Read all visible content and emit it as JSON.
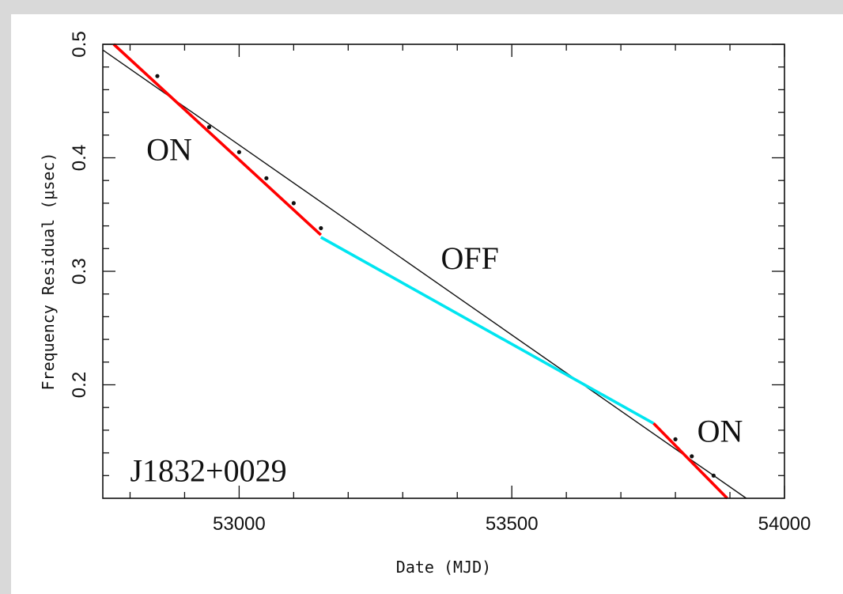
{
  "chart_data": {
    "type": "line",
    "title": "",
    "xlabel": "Date (MJD)",
    "ylabel": "Frequency Residual (μsec)",
    "xlim": [
      52750,
      54000
    ],
    "ylim": [
      0.1,
      0.5
    ],
    "x_ticks": [
      53000,
      53500,
      54000
    ],
    "y_ticks": [
      0.2,
      0.3,
      0.4,
      0.5
    ],
    "grid": false,
    "series": [
      {
        "color": "#111111",
        "style": "thin-line",
        "points": [
          [
            52750,
            0.495
          ],
          [
            53930,
            0.1
          ]
        ]
      },
      {
        "color": "#ff0000",
        "style": "thick-line",
        "points": [
          [
            52770,
            0.5
          ],
          [
            53150,
            0.332
          ]
        ]
      },
      {
        "color": "#00e5f0",
        "style": "thick-line",
        "points": [
          [
            53150,
            0.33
          ],
          [
            53760,
            0.166
          ]
        ]
      },
      {
        "color": "#ff0000",
        "style": "thick-line",
        "points": [
          [
            53760,
            0.166
          ],
          [
            53895,
            0.1
          ]
        ]
      },
      {
        "color": "#111111",
        "style": "markers",
        "points": [
          [
            52850,
            0.472
          ],
          [
            52945,
            0.427
          ],
          [
            53000,
            0.405
          ],
          [
            53050,
            0.382
          ],
          [
            53100,
            0.36
          ],
          [
            53150,
            0.338
          ],
          [
            53800,
            0.152
          ],
          [
            53830,
            0.137
          ],
          [
            53870,
            0.12
          ]
        ]
      }
    ],
    "annotations": [
      {
        "text": "ON",
        "x": 52830,
        "y": 0.398
      },
      {
        "text": "OFF",
        "x": 53370,
        "y": 0.302
      },
      {
        "text": "ON",
        "x": 53840,
        "y": 0.15
      },
      {
        "text": "J1832+0029",
        "x": 52800,
        "y": 0.115
      }
    ]
  }
}
